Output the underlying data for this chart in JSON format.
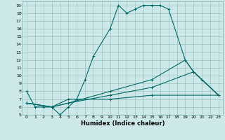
{
  "title": "",
  "xlabel": "Humidex (Indice chaleur)",
  "bg_color": "#cce8e8",
  "grid_color": "#9fbfbf",
  "line_color": "#006868",
  "xlim": [
    -0.5,
    23.5
  ],
  "ylim": [
    5,
    19.5
  ],
  "xticks": [
    0,
    1,
    2,
    3,
    4,
    5,
    6,
    7,
    8,
    9,
    10,
    11,
    12,
    13,
    14,
    15,
    16,
    17,
    18,
    19,
    20,
    21,
    22,
    23
  ],
  "yticks": [
    5,
    6,
    7,
    8,
    9,
    10,
    11,
    12,
    13,
    14,
    15,
    16,
    17,
    18,
    19
  ],
  "curve1_x": [
    0,
    1,
    2,
    3,
    4,
    5,
    6,
    7,
    8,
    10,
    11,
    12,
    13,
    14,
    15,
    16,
    17,
    19,
    20,
    21,
    23
  ],
  "curve1_y": [
    8,
    6,
    6,
    6,
    5,
    6,
    7,
    9.5,
    12.5,
    16,
    19,
    18,
    18.5,
    19,
    19,
    19,
    18.5,
    12,
    10.5,
    9.5,
    7.5
  ],
  "curve2_x": [
    0,
    3,
    5,
    10,
    15,
    19,
    20,
    23
  ],
  "curve2_y": [
    6.5,
    6,
    6.5,
    8,
    9.5,
    12,
    10.5,
    7.5
  ],
  "curve3_x": [
    0,
    3,
    5,
    10,
    15,
    20,
    23
  ],
  "curve3_y": [
    6.5,
    6,
    6.5,
    7.5,
    8.5,
    10.5,
    7.5
  ],
  "curve4_x": [
    0,
    3,
    5,
    10,
    15,
    23
  ],
  "curve4_y": [
    6.5,
    6,
    7,
    7,
    7.5,
    7.5
  ]
}
